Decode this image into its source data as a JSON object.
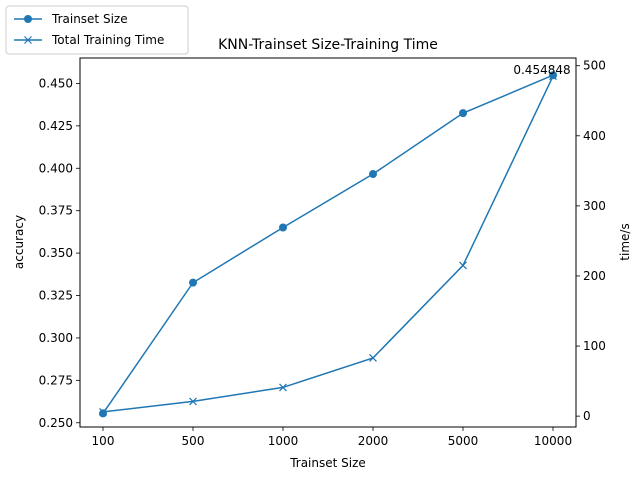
{
  "chart_data": {
    "type": "line",
    "title": "KNN-Trainset Size-Training Time",
    "xlabel": "Trainset Size",
    "ylabel_left": "accuracy",
    "ylabel_right": "time/s",
    "categories": [
      "100",
      "500",
      "1000",
      "2000",
      "5000",
      "10000"
    ],
    "y_left": {
      "range": [
        0.2475,
        0.465
      ],
      "ticks": [
        "0.250",
        "0.275",
        "0.300",
        "0.325",
        "0.350",
        "0.375",
        "0.400",
        "0.425",
        "0.450"
      ]
    },
    "y_right": {
      "range": [
        -15.5,
        511
      ],
      "ticks": [
        "0",
        "100",
        "200",
        "300",
        "400",
        "500"
      ]
    },
    "series": [
      {
        "name": "Trainset Size",
        "axis": "left",
        "marker": "circle",
        "color": "#1f77b4",
        "values": [
          0.2555,
          0.3326,
          0.3651,
          0.3966,
          0.4325,
          0.454848
        ]
      },
      {
        "name": "Total Training Time",
        "axis": "right",
        "marker": "x",
        "color": "#1f77b4",
        "values": [
          6,
          21,
          41,
          83,
          215,
          485
        ]
      }
    ],
    "annotation": {
      "text": "0.454848",
      "series": 0,
      "index": 5
    },
    "legend": {
      "placement": "top-left"
    },
    "grid": false
  }
}
